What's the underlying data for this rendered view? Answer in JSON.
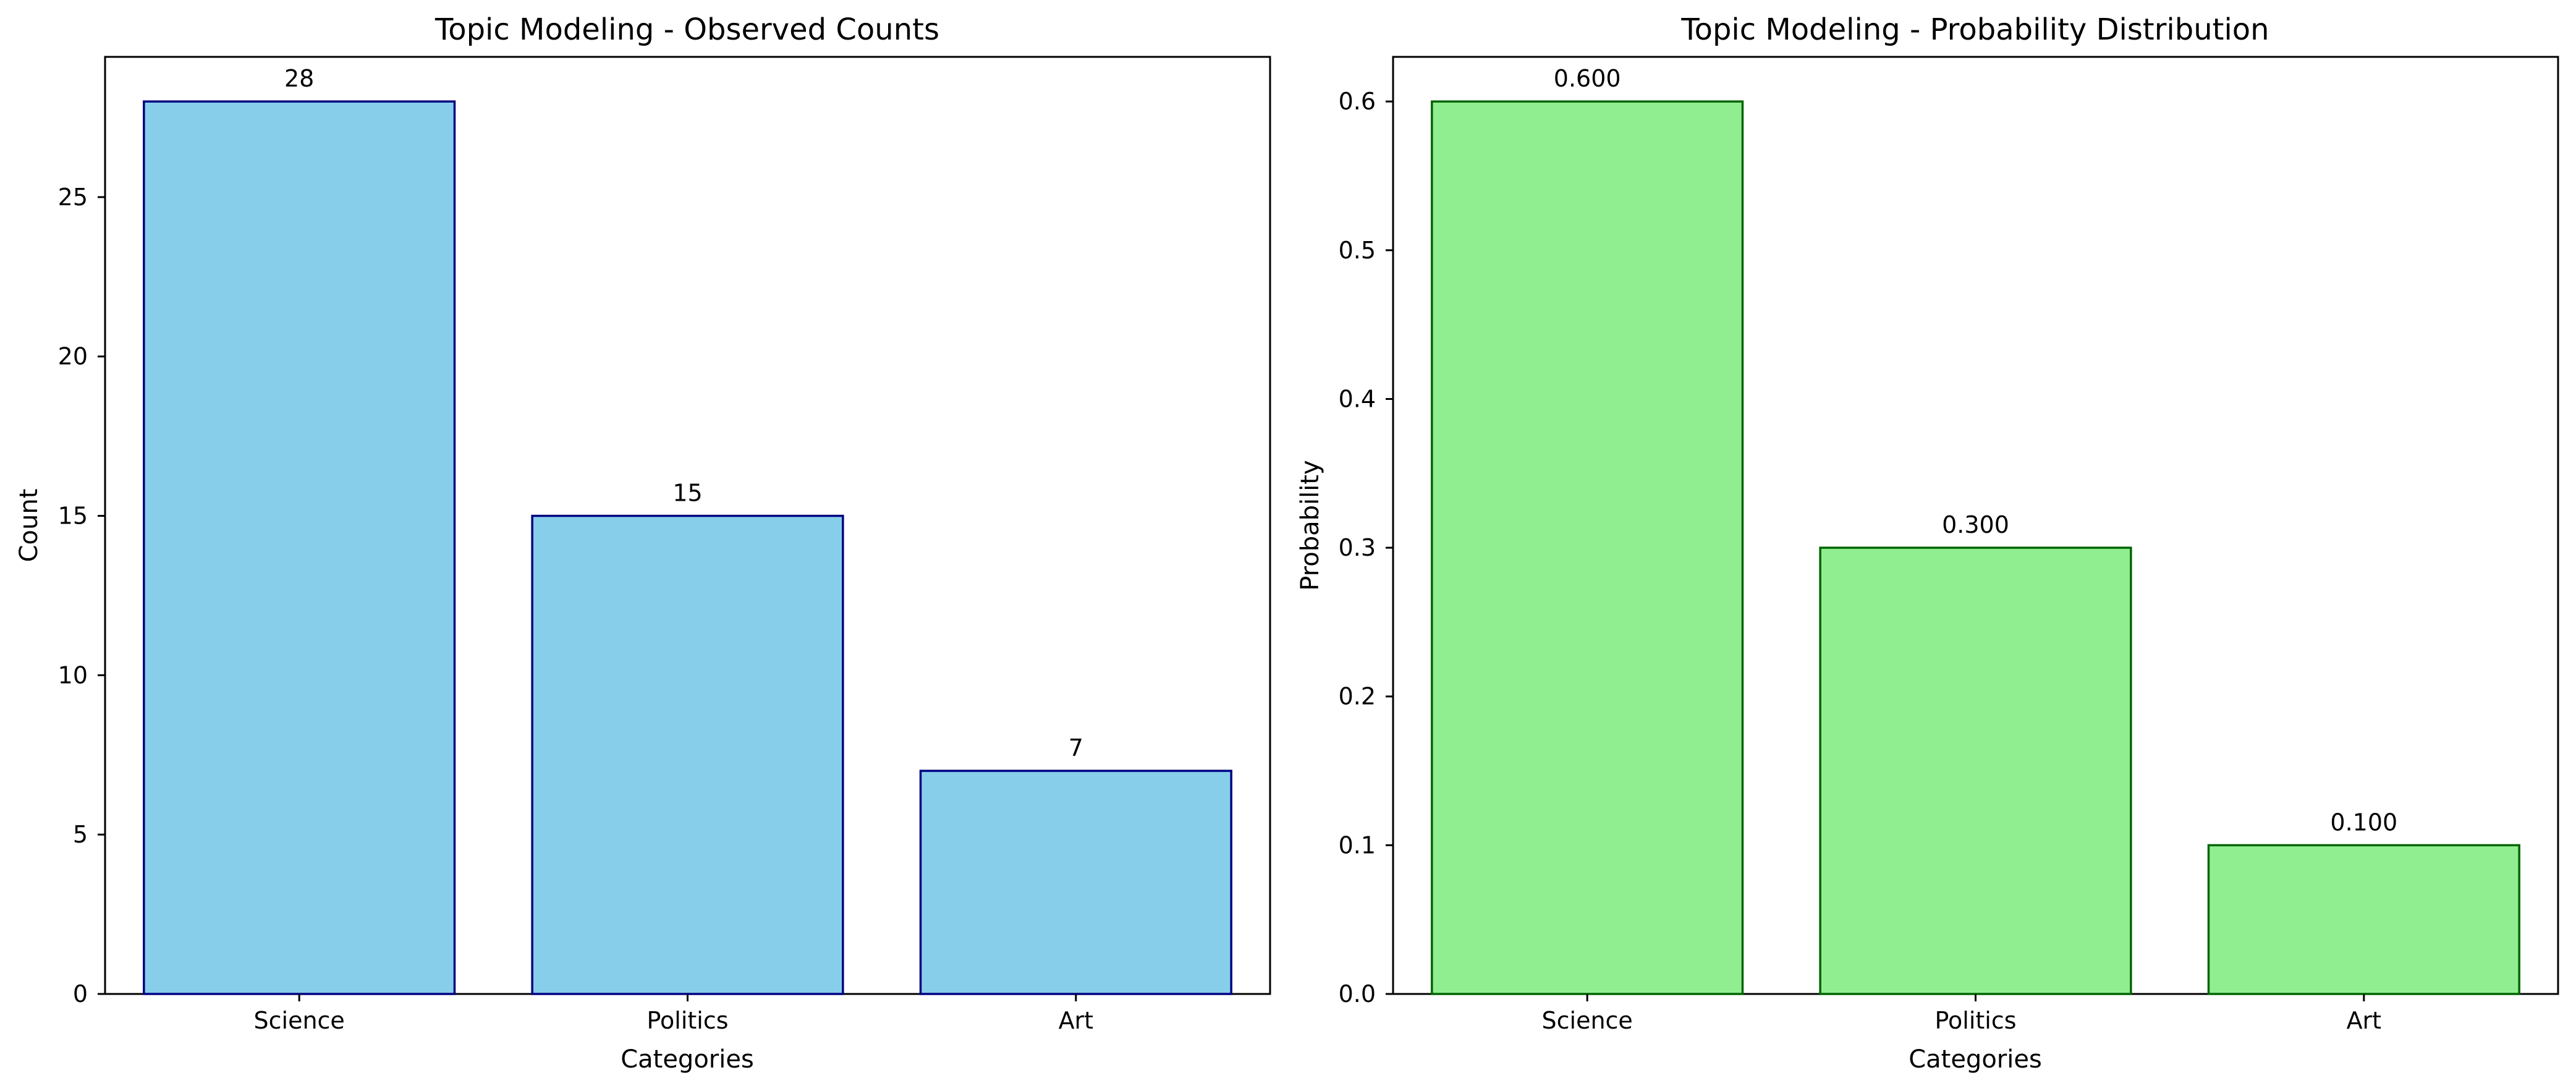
{
  "chart_data": [
    {
      "type": "bar",
      "title": "Topic Modeling - Observed Counts",
      "xlabel": "Categories",
      "ylabel": "Count",
      "categories": [
        "Science",
        "Politics",
        "Art"
      ],
      "values": [
        28,
        15,
        7
      ],
      "value_labels": [
        "28",
        "15",
        "7"
      ],
      "ylim": [
        0,
        29.4
      ],
      "yticks": [
        0,
        5,
        10,
        15,
        20,
        25
      ],
      "ytick_labels": [
        "0",
        "5",
        "10",
        "15",
        "20",
        "25"
      ],
      "grid": false,
      "bar_color": "#87ceeb",
      "edge_color": "#000080"
    },
    {
      "type": "bar",
      "title": "Topic Modeling - Probability Distribution",
      "xlabel": "Categories",
      "ylabel": "Probability",
      "categories": [
        "Science",
        "Politics",
        "Art"
      ],
      "values": [
        0.6,
        0.3,
        0.1
      ],
      "value_labels": [
        "0.600",
        "0.300",
        "0.100"
      ],
      "ylim": [
        0,
        0.63
      ],
      "yticks": [
        0,
        0.1,
        0.2,
        0.3,
        0.4,
        0.5,
        0.6
      ],
      "ytick_labels": [
        "0.0",
        "0.1",
        "0.2",
        "0.3",
        "0.4",
        "0.5",
        "0.6"
      ],
      "grid": false,
      "bar_color": "#90ee90",
      "edge_color": "#006400"
    }
  ]
}
